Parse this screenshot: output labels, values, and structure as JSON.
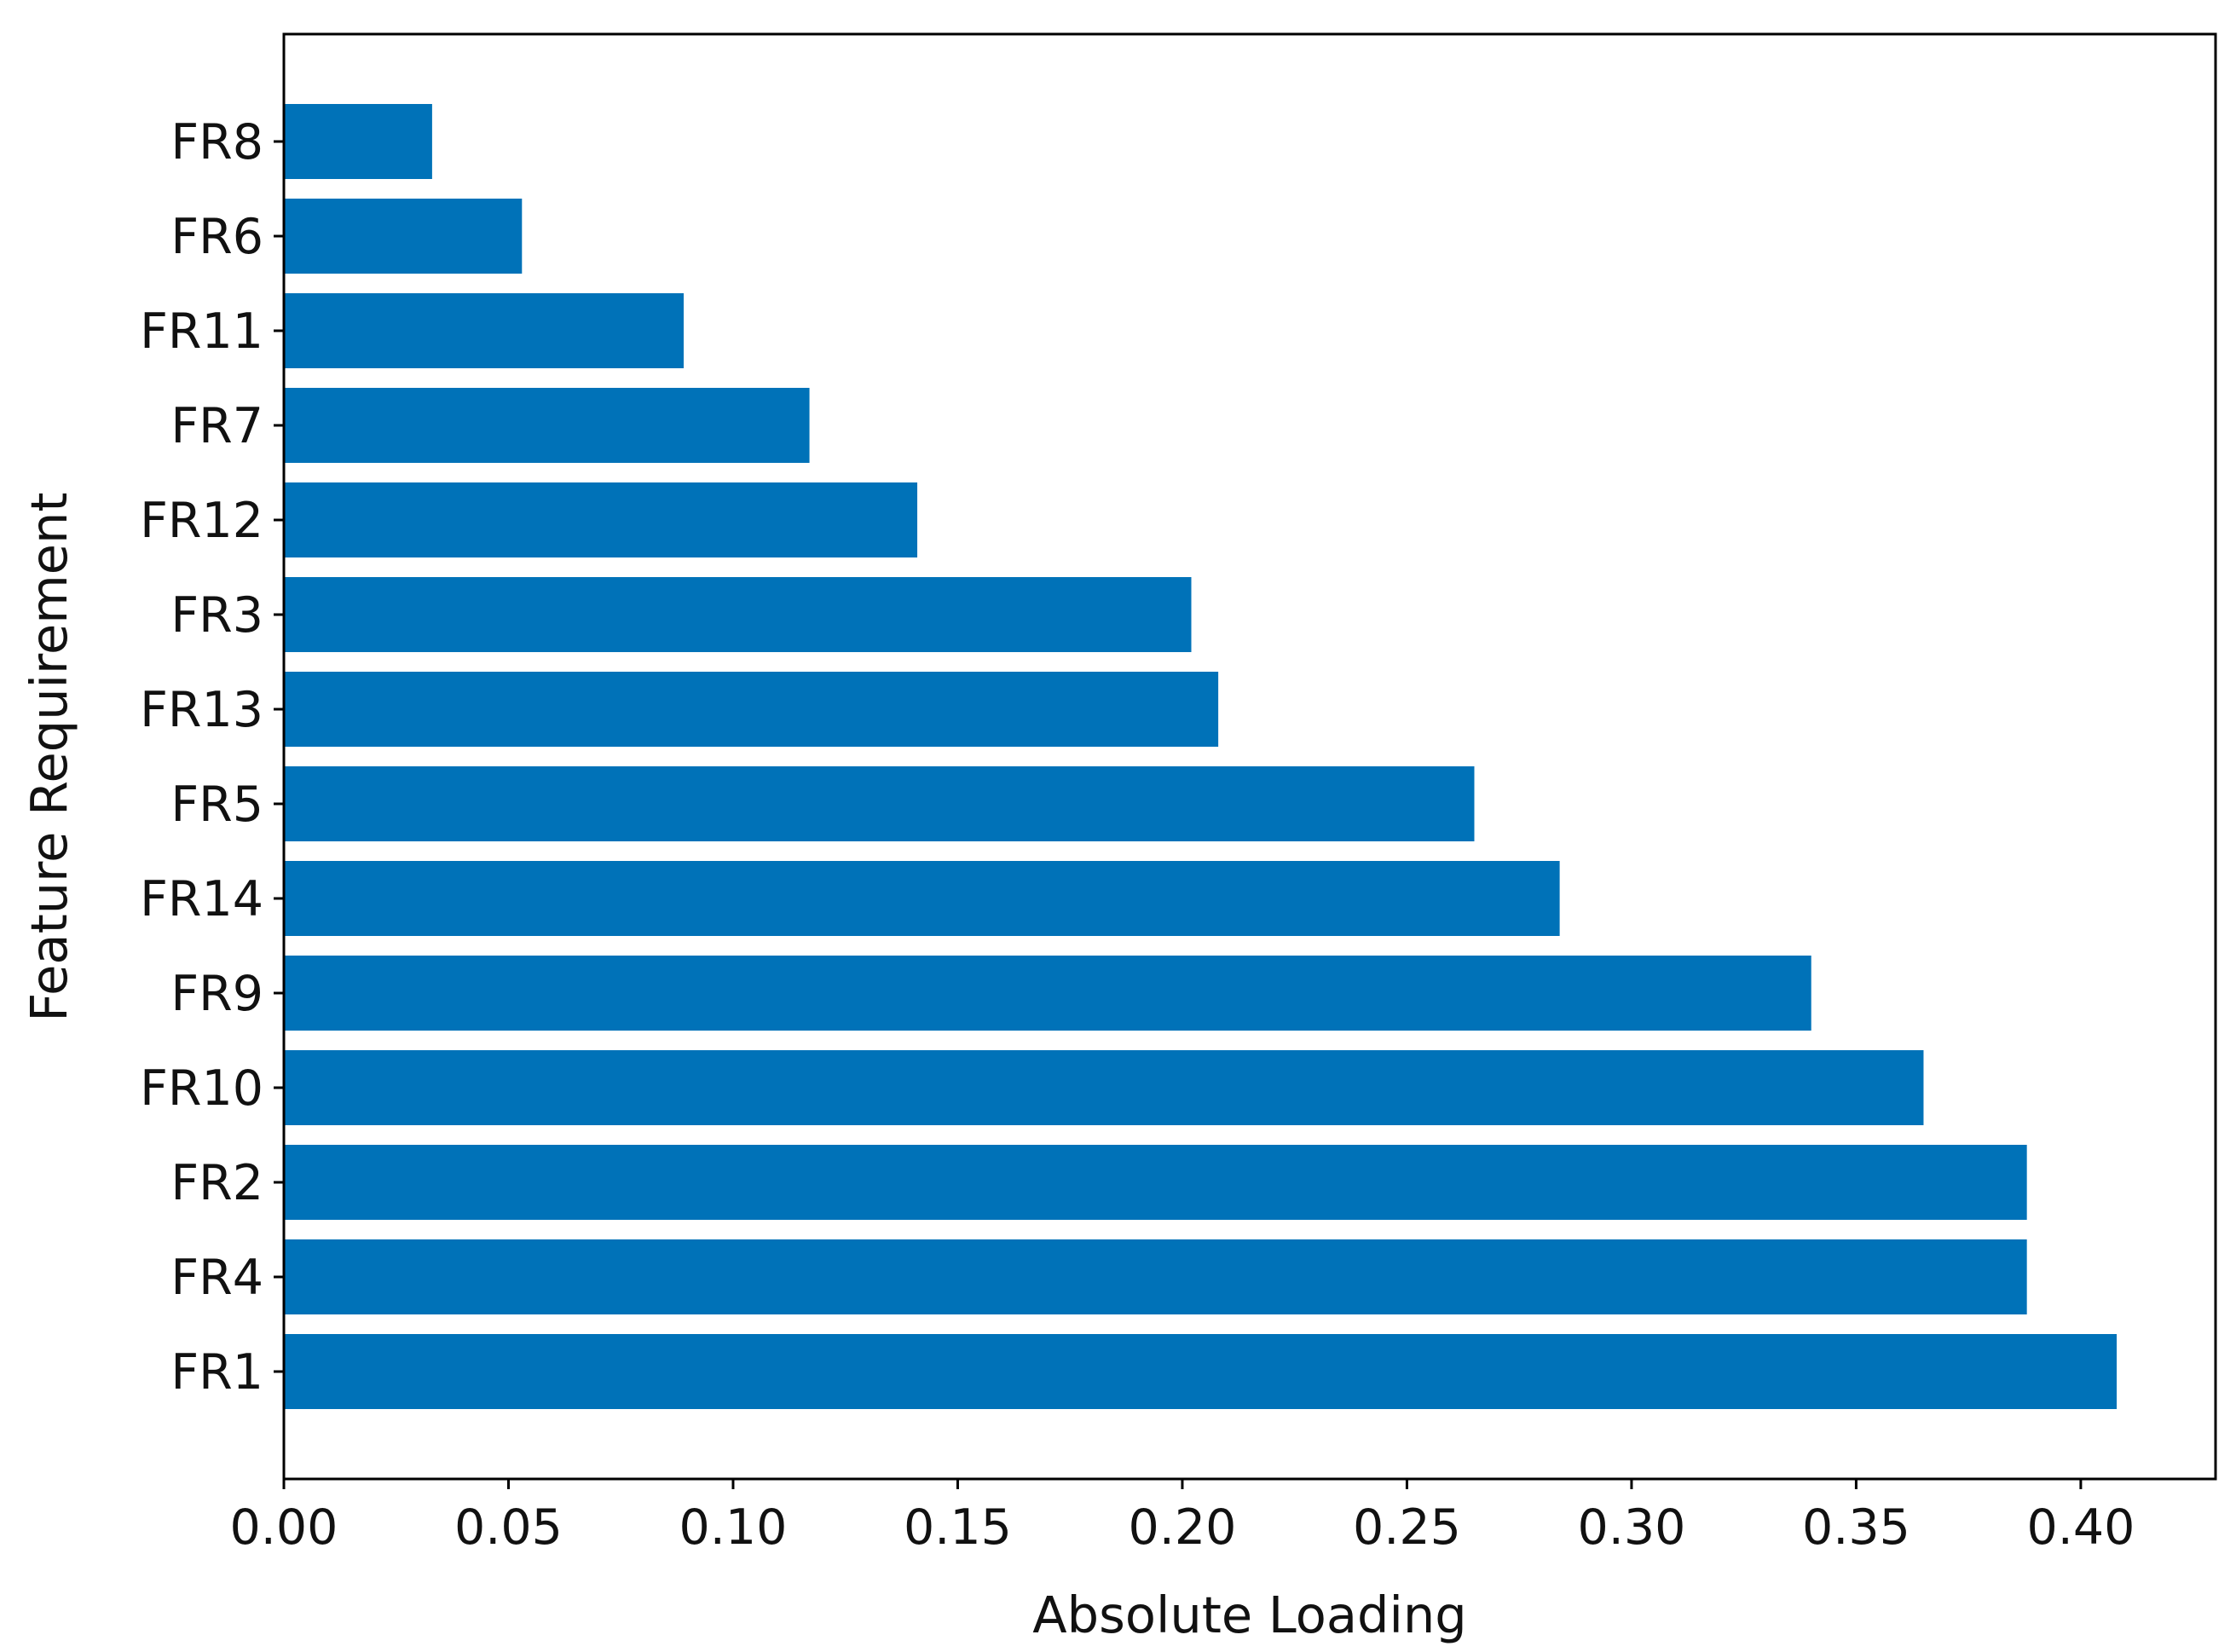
{
  "chart_data": {
    "type": "bar",
    "orientation": "horizontal",
    "title": "",
    "xlabel": "Absolute Loading",
    "ylabel": "Feature Requirement",
    "categories": [
      "FR1",
      "FR4",
      "FR2",
      "FR10",
      "FR9",
      "FR14",
      "FR5",
      "FR13",
      "FR3",
      "FR12",
      "FR7",
      "FR11",
      "FR6",
      "FR8"
    ],
    "values": [
      0.408,
      0.388,
      0.388,
      0.365,
      0.34,
      0.284,
      0.265,
      0.208,
      0.202,
      0.141,
      0.117,
      0.089,
      0.053,
      0.033
    ],
    "xlim": [
      0.0,
      0.43
    ],
    "xticks": [
      "0.00",
      "0.05",
      "0.10",
      "0.15",
      "0.20",
      "0.25",
      "0.30",
      "0.35",
      "0.40"
    ],
    "grid": false,
    "bar_color": "#0072b8"
  }
}
